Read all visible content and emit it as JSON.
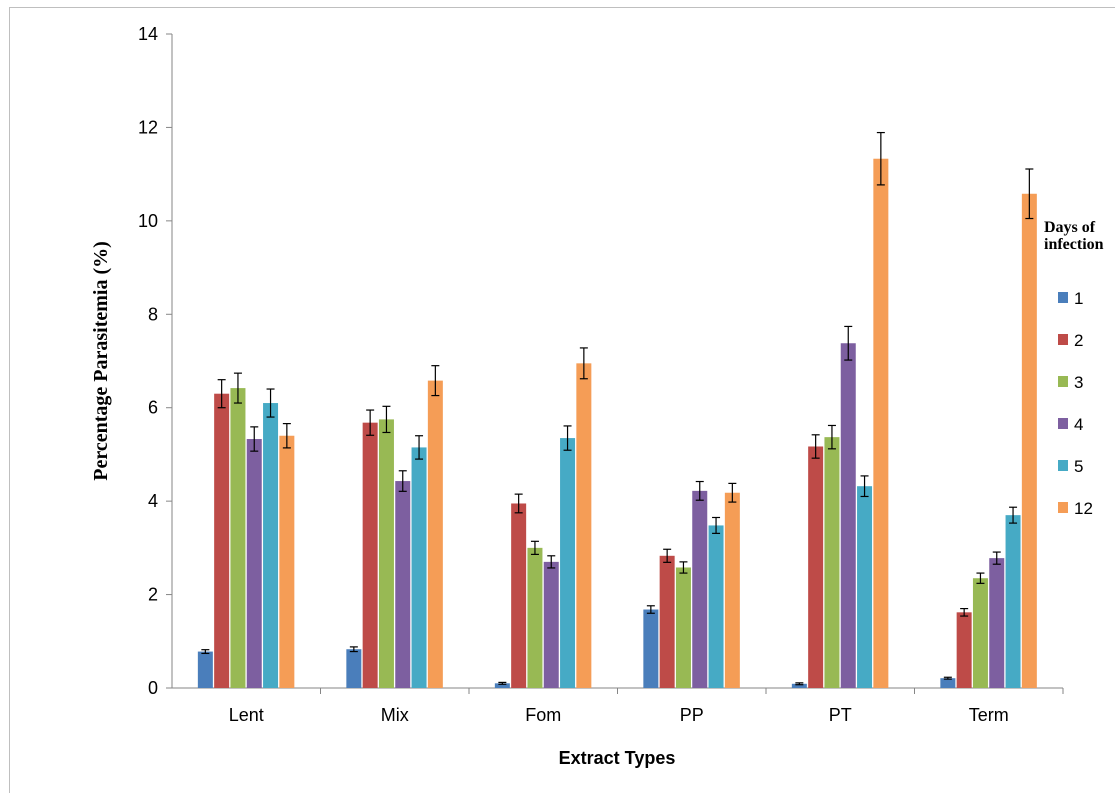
{
  "chart_data": {
    "type": "bar",
    "title": "",
    "xlabel": "Extract Types",
    "ylabel": "Percentage Parasitemia (%)",
    "ylim": [
      0,
      14
    ],
    "yticks": [
      0,
      2,
      4,
      6,
      8,
      10,
      12,
      14
    ],
    "grid": false,
    "legend_position": "right",
    "legend_title_lines": [
      "Days of",
      "infection"
    ],
    "categories": [
      "Lent",
      "Mix",
      "Fom",
      "PP",
      "PT",
      "Term"
    ],
    "series": [
      {
        "name": "1",
        "color": "#4a7ebb",
        "values": [
          0.78,
          0.83,
          0.1,
          1.68,
          0.09,
          0.21
        ],
        "errors": [
          0.04,
          0.05,
          0.02,
          0.08,
          0.02,
          0.02
        ]
      },
      {
        "name": "2",
        "color": "#be4b48",
        "values": [
          6.3,
          5.68,
          3.95,
          2.83,
          5.17,
          1.62
        ],
        "errors": [
          0.3,
          0.27,
          0.2,
          0.14,
          0.25,
          0.08
        ]
      },
      {
        "name": "3",
        "color": "#98b954",
        "values": [
          6.42,
          5.75,
          3.0,
          2.58,
          5.37,
          2.35
        ],
        "errors": [
          0.32,
          0.28,
          0.14,
          0.12,
          0.25,
          0.11
        ]
      },
      {
        "name": "4",
        "color": "#7d5fa0",
        "values": [
          5.33,
          4.43,
          2.7,
          4.22,
          7.38,
          2.78
        ],
        "errors": [
          0.26,
          0.22,
          0.13,
          0.2,
          0.36,
          0.13
        ]
      },
      {
        "name": "5",
        "color": "#46aac5",
        "values": [
          6.1,
          5.15,
          5.35,
          3.48,
          4.32,
          3.7
        ],
        "errors": [
          0.3,
          0.25,
          0.26,
          0.17,
          0.22,
          0.17
        ]
      },
      {
        "name": "12",
        "color": "#f59d56",
        "values": [
          5.4,
          6.58,
          6.95,
          4.18,
          11.33,
          10.58
        ],
        "errors": [
          0.26,
          0.32,
          0.33,
          0.2,
          0.56,
          0.53
        ]
      }
    ]
  }
}
